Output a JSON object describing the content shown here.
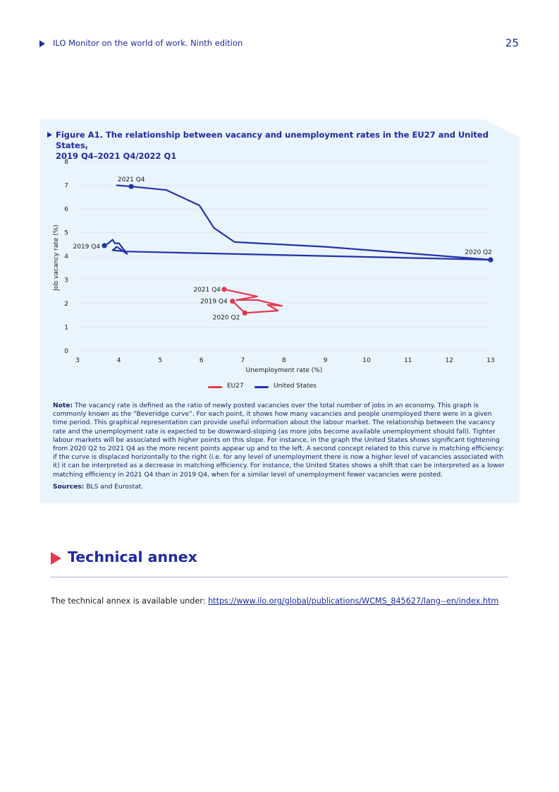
{
  "header": {
    "title": "ILO Monitor on the world of work. Ninth edition",
    "page_number": "25"
  },
  "figure": {
    "title_line1": "Figure A1.  The relationship between vacancy and unemployment rates in the EU27 and United States,",
    "title_line2": "2019 Q4–2021 Q4/2022 Q1"
  },
  "chart_data": {
    "type": "line",
    "title": "Figure A1. The relationship between vacancy and unemployment rates in the EU27 and United States, 2019 Q4–2021 Q4/2022 Q1",
    "xlabel": "Unemployment rate (%)",
    "ylabel": "Job vacancy rate (%)",
    "xlim": [
      3,
      13
    ],
    "ylim": [
      0,
      8
    ],
    "xticks": [
      3,
      4,
      5,
      6,
      7,
      8,
      9,
      10,
      11,
      12,
      13
    ],
    "yticks": [
      0,
      1,
      2,
      3,
      4,
      5,
      6,
      7,
      8
    ],
    "grid": true,
    "legend_position": "bottom",
    "colors": {
      "EU27": "#e8364f",
      "United States": "#2233aa",
      "grid": "#e1e6f0",
      "axis_text": "#1a1a1a"
    },
    "series": [
      {
        "name": "EU27",
        "points": [
          [
            6.75,
            2.1
          ],
          [
            7.05,
            1.6
          ],
          [
            7.85,
            1.7
          ],
          [
            7.6,
            1.95
          ],
          [
            7.95,
            1.9
          ],
          [
            7.35,
            2.15
          ],
          [
            6.85,
            2.15
          ],
          [
            7.35,
            2.3
          ],
          [
            6.55,
            2.6
          ]
        ],
        "markers": [
          {
            "x": 6.75,
            "y": 2.1,
            "label": "2019 Q4"
          },
          {
            "x": 7.05,
            "y": 1.6,
            "label": "2020 Q2"
          },
          {
            "x": 6.55,
            "y": 2.6,
            "label": "2021 Q4"
          }
        ]
      },
      {
        "name": "United States",
        "points": [
          [
            3.65,
            4.45
          ],
          [
            3.75,
            4.55
          ],
          [
            3.85,
            4.7
          ],
          [
            3.9,
            4.55
          ],
          [
            4.0,
            4.55
          ],
          [
            4.2,
            4.1
          ],
          [
            3.95,
            4.4
          ],
          [
            3.85,
            4.25
          ],
          [
            4.2,
            4.2
          ],
          [
            13.0,
            3.85
          ],
          [
            9.0,
            4.4
          ],
          [
            6.8,
            4.6
          ],
          [
            6.3,
            5.2
          ],
          [
            5.95,
            6.15
          ],
          [
            5.15,
            6.8
          ],
          [
            4.3,
            6.95
          ],
          [
            3.95,
            7.0
          ]
        ],
        "markers": [
          {
            "x": 3.65,
            "y": 4.45,
            "label": "2019 Q4"
          },
          {
            "x": 13.0,
            "y": 3.85,
            "label": "2020 Q2"
          },
          {
            "x": 4.3,
            "y": 6.95,
            "label": "2021 Q4"
          }
        ]
      }
    ]
  },
  "legend": {
    "eu27": "EU27",
    "us": "United States"
  },
  "note": {
    "label": "Note:",
    "text": "The vacancy rate is defined as the ratio of newly posted vacancies over the total number of jobs in an economy. This graph is commonly known as the “Beveridge curve”. For each point, it shows how many vacancies and people unemployed there were in a given time period. This graphical representation can provide useful information about the labour market. The relationship between the vacancy rate and the unemployment rate is expected to be downward-sloping (as more jobs become available unemployment should fall). Tighter labour markets will be associated with higher points on this slope. For instance, in the graph the United States shows significant tightening from 2020 Q2 to 2021 Q4 as the more recent points appear up and to the left. A second concept related to this curve is matching efficiency: if the curve is displaced horizontally to the right (i.e. for any level of unemployment there is now a higher level of vacancies associated with it) it can be interpreted as a decrease in matching efficiency. For instance, the United States shows a shift that can be interpreted as a lower matching efficiency in 2021 Q4 than in 2019 Q4, when for a similar level of unemployment fewer vacancies were posted."
  },
  "sources": {
    "label": "Sources:",
    "text": "BLS and Eurostat."
  },
  "annex": {
    "heading": "Technical annex",
    "text": "The technical annex is available under: ",
    "link": "https://www.ilo.org/global/publications/WCMS_845627/lang--en/index.htm"
  }
}
